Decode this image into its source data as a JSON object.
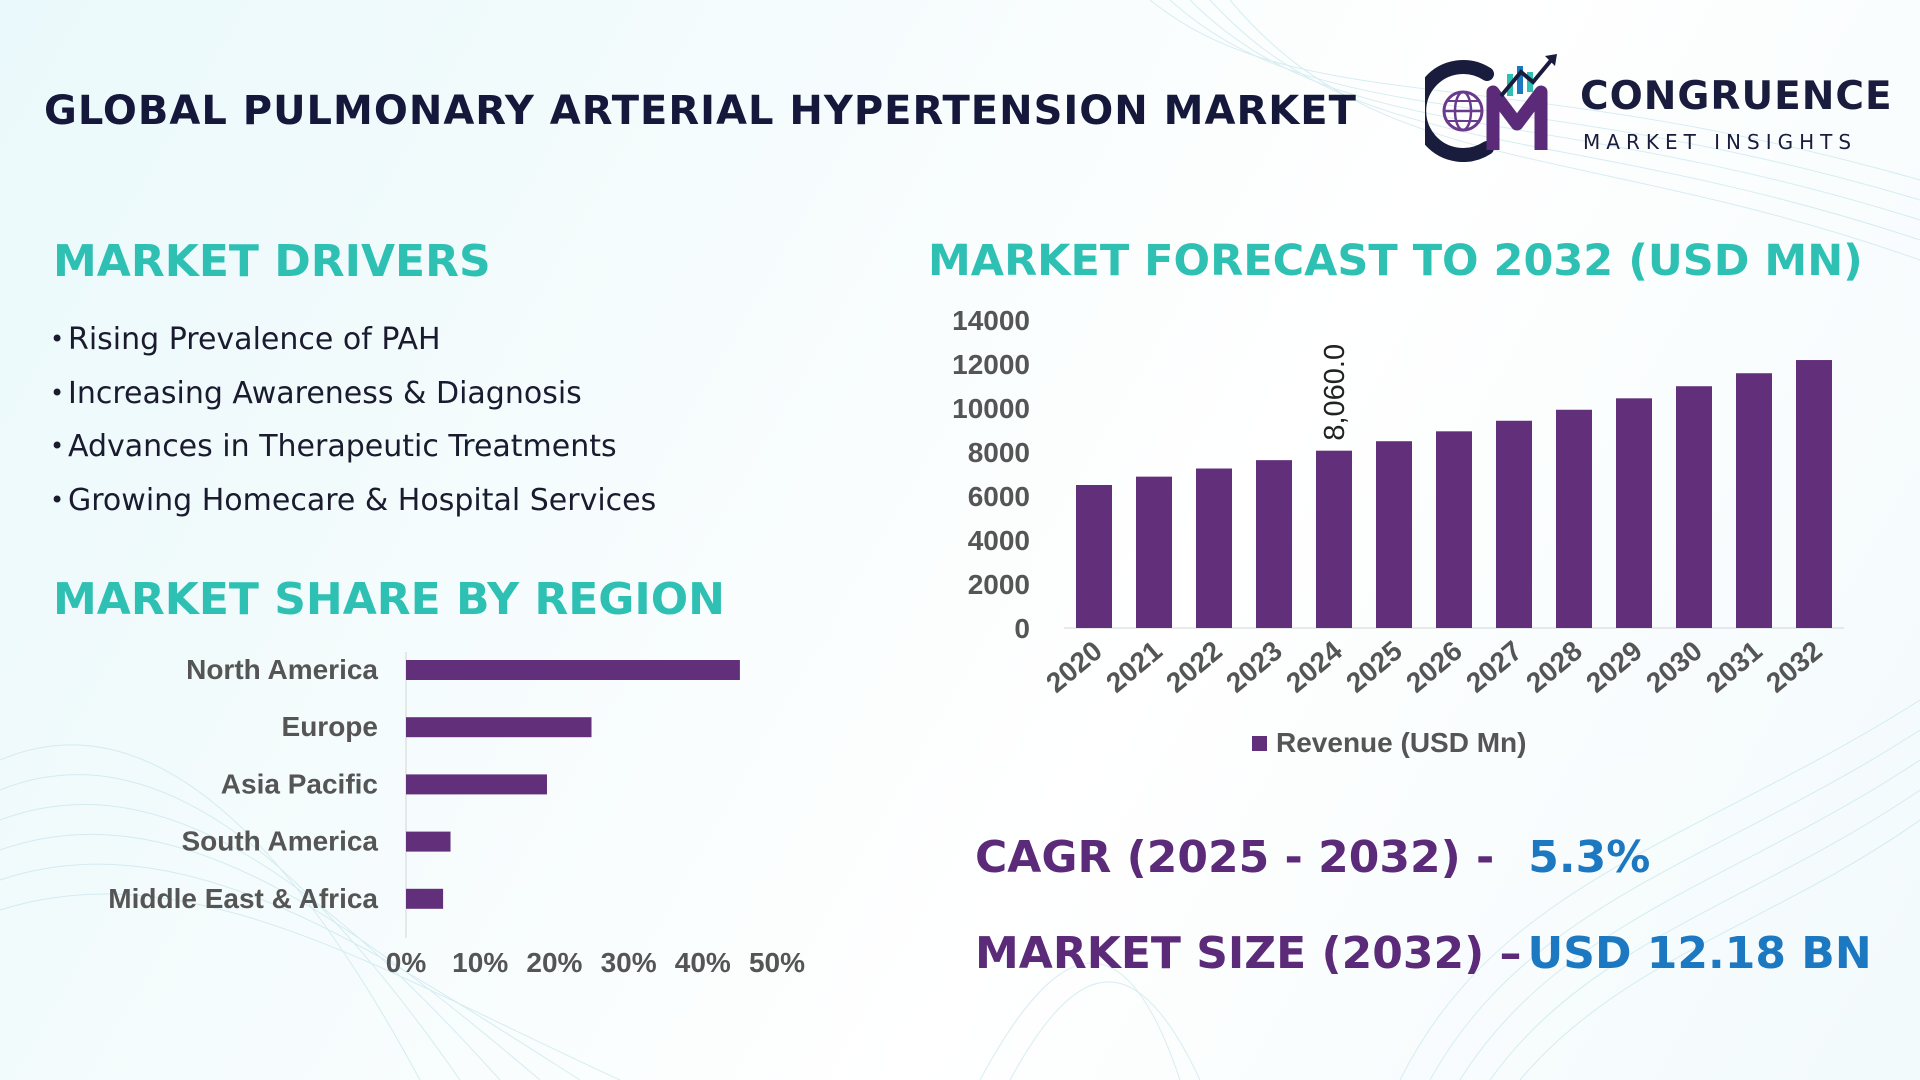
{
  "header": {
    "title": "GLOBAL PULMONARY ARTERIAL HYPERTENSION MARKET"
  },
  "logo": {
    "name": "CONGRUENCE",
    "tagline": "MARKET INSIGHTS",
    "icon": "cmi-globe-logo-icon"
  },
  "colors": {
    "accent_teal": "#2fc0b4",
    "bar_purple": "#622f7b",
    "stat_purple": "#5b2a79",
    "stat_blue": "#1c78c0",
    "title_navy": "#15183b"
  },
  "drivers": {
    "title": "MARKET DRIVERS",
    "items": [
      "Rising Prevalence of PAH",
      "Increasing Awareness & Diagnosis",
      "Advances in Therapeutic Treatments",
      "Growing Homecare & Hospital Services"
    ]
  },
  "region": {
    "title": "MARKET SHARE BY REGION"
  },
  "forecast": {
    "title": "MARKET FORECAST TO 2032 (USD MN)"
  },
  "stats": {
    "cagr_label": "CAGR (2025 - 2032) -",
    "cagr_value": "5.3%",
    "size_label": "MARKET SIZE (2032) –",
    "size_value": "USD 12.18 BN"
  },
  "chart_data": [
    {
      "type": "bar",
      "orientation": "horizontal",
      "categories": [
        "North America",
        "Europe",
        "Asia Pacific",
        "South America",
        "Middle East & Africa"
      ],
      "values": [
        45,
        25,
        19,
        6,
        5
      ],
      "value_unit": "%",
      "xlim": [
        0,
        50
      ],
      "xticks": [
        "0%",
        "10%",
        "20%",
        "30%",
        "40%",
        "50%"
      ],
      "grid": false
    },
    {
      "type": "bar",
      "orientation": "vertical",
      "categories": [
        "2020",
        "2021",
        "2022",
        "2023",
        "2024",
        "2025",
        "2026",
        "2027",
        "2028",
        "2029",
        "2030",
        "2031",
        "2032"
      ],
      "series": [
        {
          "name": "Revenue (USD Mn)",
          "values": [
            6500,
            6880,
            7250,
            7630,
            8060,
            8490,
            8940,
            9420,
            9920,
            10440,
            10990,
            11580,
            12180
          ]
        }
      ],
      "data_labels": [
        {
          "category": "2024",
          "text": "8,060.0"
        }
      ],
      "ylim": [
        0,
        14000
      ],
      "yticks": [
        "0",
        "2000",
        "4000",
        "6000",
        "8000",
        "10000",
        "12000",
        "14000"
      ],
      "legend": "bottom",
      "grid": false
    }
  ]
}
